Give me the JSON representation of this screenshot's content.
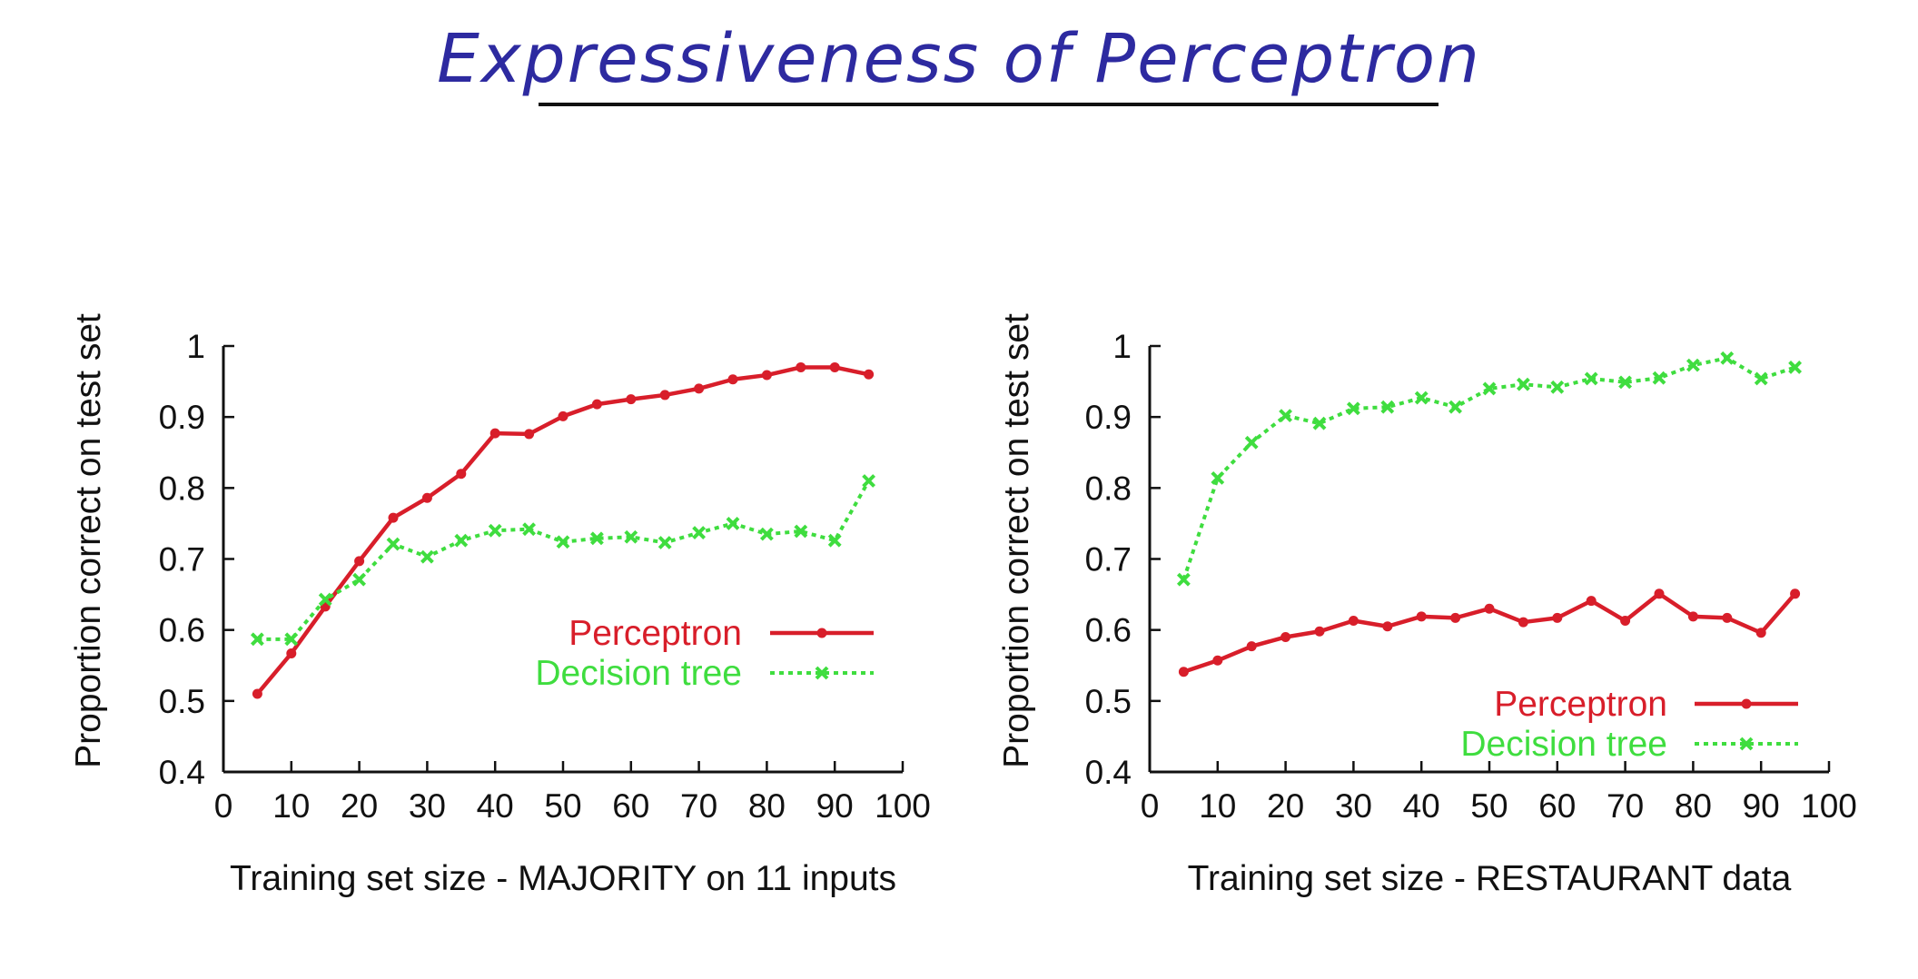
{
  "page": {
    "title": "Expressiveness of Perceptron"
  },
  "colors": {
    "perceptron": "#d81e2a",
    "decision_tree": "#3fdd3f",
    "axis": "#111111",
    "title_ink": "#2d2aa0"
  },
  "chart_data": [
    {
      "type": "line",
      "xlabel": "Training set size - MAJORITY on 11 inputs",
      "ylabel": "Proportion correct on test set",
      "xlim": [
        0,
        100
      ],
      "ylim": [
        0.4,
        1
      ],
      "xticks": [
        "0",
        "10",
        "20",
        "30",
        "40",
        "50",
        "60",
        "70",
        "80",
        "90",
        "100"
      ],
      "yticks": [
        "0.4",
        "0.5",
        "0.6",
        "0.7",
        "0.8",
        "0.9",
        "1"
      ],
      "grid": false,
      "legend_position": "center-right",
      "x": [
        5,
        10,
        15,
        20,
        25,
        30,
        35,
        40,
        45,
        50,
        55,
        60,
        65,
        70,
        75,
        80,
        85,
        90,
        95
      ],
      "series": [
        {
          "name": "Perceptron",
          "style": "solid",
          "marker": "dot",
          "values": [
            0.51,
            0.567,
            0.633,
            0.697,
            0.758,
            0.786,
            0.82,
            0.877,
            0.876,
            0.901,
            0.918,
            0.925,
            0.931,
            0.94,
            0.953,
            0.959,
            0.97,
            0.97,
            0.96
          ]
        },
        {
          "name": "Decision tree",
          "style": "dotted",
          "marker": "x",
          "values": [
            0.587,
            0.587,
            0.643,
            0.671,
            0.721,
            0.703,
            0.726,
            0.74,
            0.742,
            0.724,
            0.729,
            0.731,
            0.723,
            0.737,
            0.75,
            0.735,
            0.739,
            0.726,
            0.81
          ]
        }
      ]
    },
    {
      "type": "line",
      "xlabel": "Training set size - RESTAURANT data",
      "ylabel": "Proportion correct on test set",
      "xlim": [
        0,
        100
      ],
      "ylim": [
        0.4,
        1
      ],
      "xticks": [
        "0",
        "10",
        "20",
        "30",
        "40",
        "50",
        "60",
        "70",
        "80",
        "90",
        "100"
      ],
      "yticks": [
        "0.4",
        "0.5",
        "0.6",
        "0.7",
        "0.8",
        "0.9",
        "1"
      ],
      "grid": false,
      "legend_position": "bottom-right",
      "x": [
        5,
        10,
        15,
        20,
        25,
        30,
        35,
        40,
        45,
        50,
        55,
        60,
        65,
        70,
        75,
        80,
        85,
        90,
        95
      ],
      "series": [
        {
          "name": "Perceptron",
          "style": "solid",
          "marker": "dot",
          "values": [
            0.541,
            0.557,
            0.577,
            0.59,
            0.598,
            0.613,
            0.605,
            0.619,
            0.617,
            0.63,
            0.611,
            0.617,
            0.641,
            0.613,
            0.651,
            0.619,
            0.617,
            0.596,
            0.651
          ]
        },
        {
          "name": "Decision tree",
          "style": "dotted",
          "marker": "x",
          "values": [
            0.671,
            0.814,
            0.864,
            0.902,
            0.891,
            0.912,
            0.914,
            0.927,
            0.914,
            0.94,
            0.946,
            0.942,
            0.954,
            0.949,
            0.955,
            0.973,
            0.983,
            0.954,
            0.97
          ]
        }
      ]
    }
  ]
}
